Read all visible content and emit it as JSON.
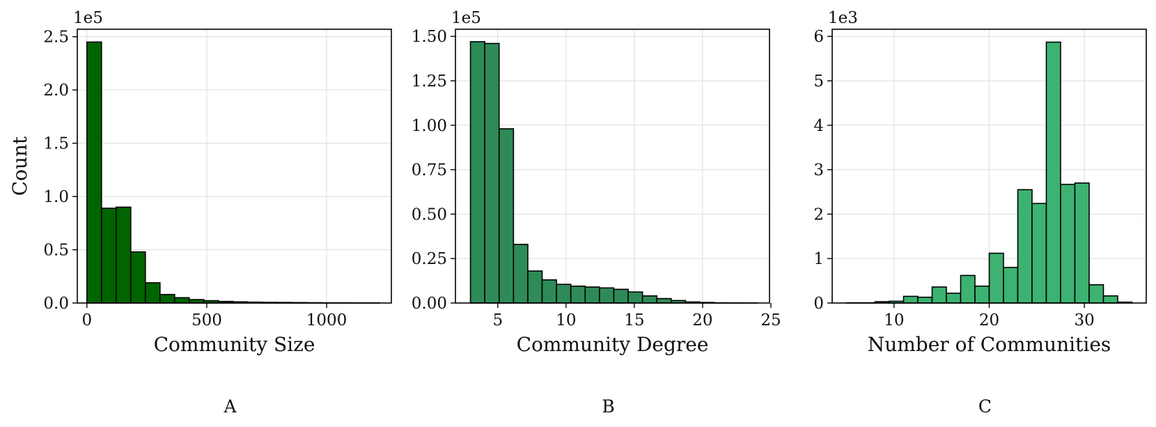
{
  "chart_data": [
    {
      "panel": "A",
      "type": "bar",
      "xlabel": "Community Size",
      "ylabel": "Count",
      "y_multiplier": "1e5",
      "color": "#006400",
      "xlim": [
        -40,
        1270
      ],
      "ylim": [
        0,
        2.57
      ],
      "xticks": [
        0,
        500,
        1000
      ],
      "yticks": [
        0.0,
        0.5,
        1.0,
        1.5,
        2.0,
        2.5
      ],
      "ytick_labels": [
        "0.0",
        "0.5",
        "1.0",
        "1.5",
        "2.0",
        "2.5"
      ],
      "bin_edges": [
        0,
        61,
        122,
        183,
        244,
        305,
        366,
        427,
        488,
        549,
        610,
        671,
        732,
        793,
        854,
        915,
        976,
        1037,
        1098,
        1159,
        1220
      ],
      "values": [
        2.45,
        0.89,
        0.9,
        0.48,
        0.19,
        0.08,
        0.05,
        0.032,
        0.022,
        0.015,
        0.011,
        0.008,
        0.006,
        0.005,
        0.004,
        0.003,
        0.002,
        0.002,
        0.001,
        0.001
      ],
      "grid": true
    },
    {
      "panel": "B",
      "type": "bar",
      "xlabel": "Community Degree",
      "ylabel": "",
      "y_multiplier": "1e5",
      "color": "#2e8b57",
      "xlim": [
        1.9,
        24.9
      ],
      "ylim": [
        0,
        1.54
      ],
      "xticks": [
        5,
        10,
        15,
        20,
        25
      ],
      "yticks": [
        0.0,
        0.25,
        0.5,
        0.75,
        1.0,
        1.25,
        1.5
      ],
      "ytick_labels": [
        "0.00",
        "0.25",
        "0.50",
        "0.75",
        "1.00",
        "1.25",
        "1.50"
      ],
      "bin_edges": [
        3.0,
        4.05,
        5.1,
        6.15,
        7.2,
        8.25,
        9.3,
        10.35,
        11.4,
        12.45,
        13.5,
        14.55,
        15.6,
        16.65,
        17.7,
        18.75,
        19.8,
        20.85,
        21.9,
        22.95,
        24.0
      ],
      "values": [
        1.47,
        1.46,
        0.98,
        0.33,
        0.18,
        0.13,
        0.105,
        0.095,
        0.09,
        0.085,
        0.077,
        0.062,
        0.04,
        0.025,
        0.014,
        0.006,
        0.003,
        0.001,
        0.0005,
        0.0003
      ],
      "grid": true
    },
    {
      "panel": "C",
      "type": "bar",
      "xlabel": "Number of Communities",
      "ylabel": "",
      "y_multiplier": "1e3",
      "color": "#3cb371",
      "xlim": [
        3.5,
        36.5
      ],
      "ylim": [
        0,
        6.16
      ],
      "xticks": [
        10,
        20,
        30
      ],
      "yticks": [
        0,
        1,
        2,
        3,
        4,
        5,
        6
      ],
      "ytick_labels": [
        "0",
        "1",
        "2",
        "3",
        "4",
        "5",
        "6"
      ],
      "bin_edges": [
        5.0,
        6.5,
        8.0,
        9.5,
        11.0,
        12.5,
        14.0,
        15.5,
        17.0,
        18.5,
        20.0,
        21.5,
        23.0,
        24.5,
        26.0,
        27.5,
        29.0,
        30.5,
        32.0,
        33.5,
        35.0
      ],
      "values": [
        0.005,
        0.005,
        0.03,
        0.04,
        0.15,
        0.13,
        0.36,
        0.22,
        0.62,
        0.38,
        1.12,
        0.8,
        2.55,
        2.24,
        5.87,
        2.67,
        2.7,
        0.41,
        0.16,
        0.02
      ],
      "grid": true
    }
  ]
}
